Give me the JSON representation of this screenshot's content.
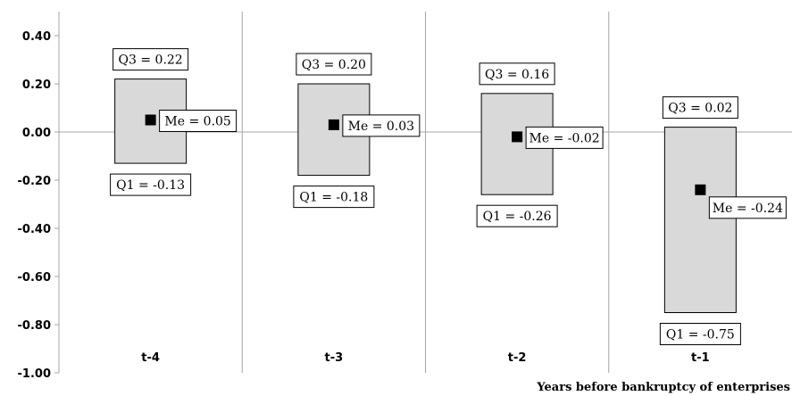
{
  "chart_data": {
    "type": "boxplot",
    "title": "",
    "xlabel": "Years before bankruptcy of enterprises",
    "ylabel": "",
    "ylim": [
      -1.0,
      0.4
    ],
    "yticks": [
      0.4,
      0.2,
      0.0,
      -0.2,
      -0.4,
      -0.6,
      -0.8,
      -1.0
    ],
    "ytick_labels": [
      "0.40",
      "0.20",
      "0.00",
      "-0.20",
      "-0.40",
      "-0.60",
      "-0.80",
      "-1.00"
    ],
    "grid": "vertical separators between categories",
    "categories": [
      "t-4",
      "t-3",
      "t-2",
      "t-1"
    ],
    "q1": [
      -0.13,
      -0.18,
      -0.26,
      -0.75
    ],
    "median": [
      0.05,
      0.03,
      -0.02,
      -0.24
    ],
    "q3": [
      0.22,
      0.2,
      0.16,
      0.02
    ],
    "q1_labels": [
      "Q1 = -0.13",
      "Q1 = -0.18",
      "Q1 = -0.26",
      "Q1 = -0.75"
    ],
    "median_labels": [
      "Me = 0.05",
      "Me = 0.03",
      "Me = -0.02",
      "Me = -0.24"
    ],
    "q3_labels": [
      "Q3 = 0.22",
      "Q3 = 0.20",
      "Q3 = 0.16",
      "Q3 = 0.02"
    ],
    "box_color": "#d9d9d9",
    "marker_color": "#000000"
  }
}
